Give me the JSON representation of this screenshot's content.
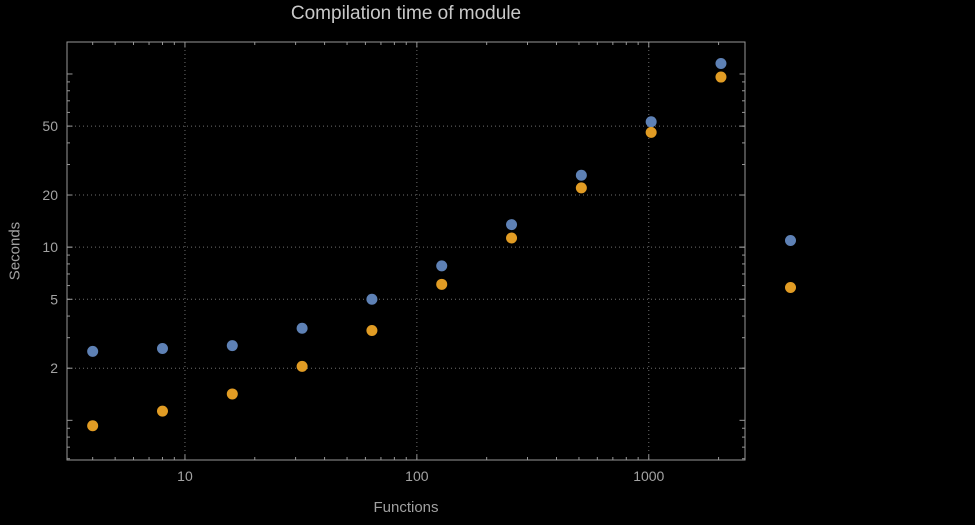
{
  "title": "Compilation time of module",
  "axes": {
    "xlabel": "Functions",
    "ylabel": "Seconds"
  },
  "colors": {
    "background": "#000000",
    "frame": "#979797",
    "grid": "#6e6e6e",
    "tick_label": "#a3a3a3",
    "axis_label": "#a0a0a0",
    "title": "#c9c9c9"
  },
  "legend": {
    "markers": [
      {
        "name": "series-1",
        "color": "#5e81b5",
        "label": ""
      },
      {
        "name": "series-2",
        "color": "#e19c24",
        "label": ""
      }
    ]
  },
  "chart_data": {
    "type": "scatter",
    "title": "Compilation time of module",
    "xlabel": "Functions",
    "ylabel": "Seconds",
    "x_scale": "log",
    "y_scale": "log",
    "x_range": [
      3.1,
      2600
    ],
    "y_range": [
      0.59,
      153
    ],
    "x_ticks": [
      10,
      100,
      1000
    ],
    "y_ticks": [
      2,
      5,
      10,
      20,
      50
    ],
    "grid": "dotted",
    "legend_position": "right-outside",
    "series": [
      {
        "name": "series-1-blue",
        "color": "#5e81b5",
        "x": [
          4,
          8,
          16,
          32,
          64,
          128,
          256,
          512,
          1024,
          2048
        ],
        "y": [
          2.5,
          2.6,
          2.7,
          3.4,
          5.0,
          7.8,
          13.5,
          26,
          53,
          115
        ]
      },
      {
        "name": "series-2-orange",
        "color": "#e19c24",
        "x": [
          4,
          8,
          16,
          32,
          64,
          128,
          256,
          512,
          1024,
          2048
        ],
        "y": [
          0.93,
          1.13,
          1.42,
          2.05,
          3.3,
          6.1,
          11.3,
          22,
          46,
          96
        ]
      }
    ]
  }
}
